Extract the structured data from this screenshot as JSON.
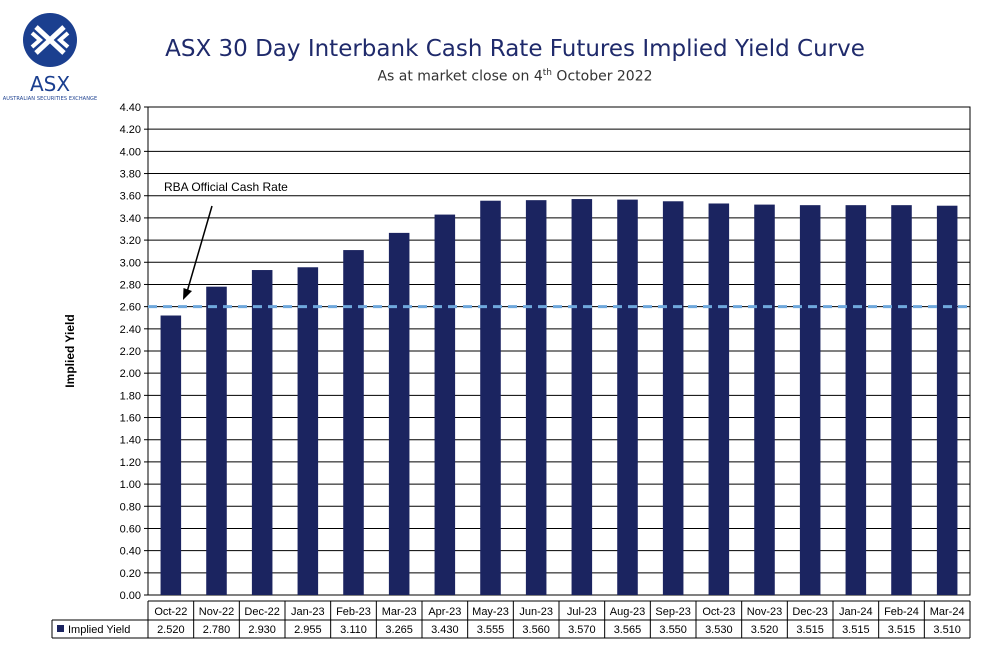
{
  "logo": {
    "text": "ASX",
    "subtext": "AUSTRALIAN SECURITIES EXCHANGE"
  },
  "colors": {
    "bar": "#1b2460",
    "rba_line": "#6fa8dc",
    "title": "#1f2a6b",
    "logo": "#1b3f8f"
  },
  "chart_data": {
    "type": "bar",
    "title": "ASX 30 Day Interbank Cash Rate Futures Implied Yield Curve",
    "subtitle_prefix": "As at market close on 4",
    "subtitle_sup": "th",
    "subtitle_suffix": " October 2022",
    "ylabel": "Implied Yield",
    "ylim": [
      0,
      4.4
    ],
    "ytick_step": 0.2,
    "yticks": [
      "0.00",
      "0.20",
      "0.40",
      "0.60",
      "0.80",
      "1.00",
      "1.20",
      "1.40",
      "1.60",
      "1.80",
      "2.00",
      "2.20",
      "2.40",
      "2.60",
      "2.80",
      "3.00",
      "3.20",
      "3.40",
      "3.60",
      "3.80",
      "4.00",
      "4.20",
      "4.40"
    ],
    "grid": true,
    "categories": [
      "Oct-22",
      "Nov-22",
      "Dec-22",
      "Jan-23",
      "Feb-23",
      "Mar-23",
      "Apr-23",
      "May-23",
      "Jun-23",
      "Jul-23",
      "Aug-23",
      "Sep-23",
      "Oct-23",
      "Nov-23",
      "Dec-23",
      "Jan-24",
      "Feb-24",
      "Mar-24"
    ],
    "series": [
      {
        "name": "Implied Yield",
        "values": [
          2.52,
          2.78,
          2.93,
          2.955,
          3.11,
          3.265,
          3.43,
          3.555,
          3.56,
          3.57,
          3.565,
          3.55,
          3.53,
          3.52,
          3.515,
          3.515,
          3.515,
          3.51
        ],
        "labels": [
          "2.520",
          "2.780",
          "2.930",
          "2.955",
          "3.110",
          "3.265",
          "3.430",
          "3.555",
          "3.560",
          "3.570",
          "3.565",
          "3.550",
          "3.530",
          "3.520",
          "3.515",
          "3.515",
          "3.515",
          "3.510"
        ]
      }
    ],
    "reference_line": {
      "label": "RBA Official Cash Rate",
      "value": 2.6,
      "style": "dashed"
    },
    "data_table": true
  }
}
